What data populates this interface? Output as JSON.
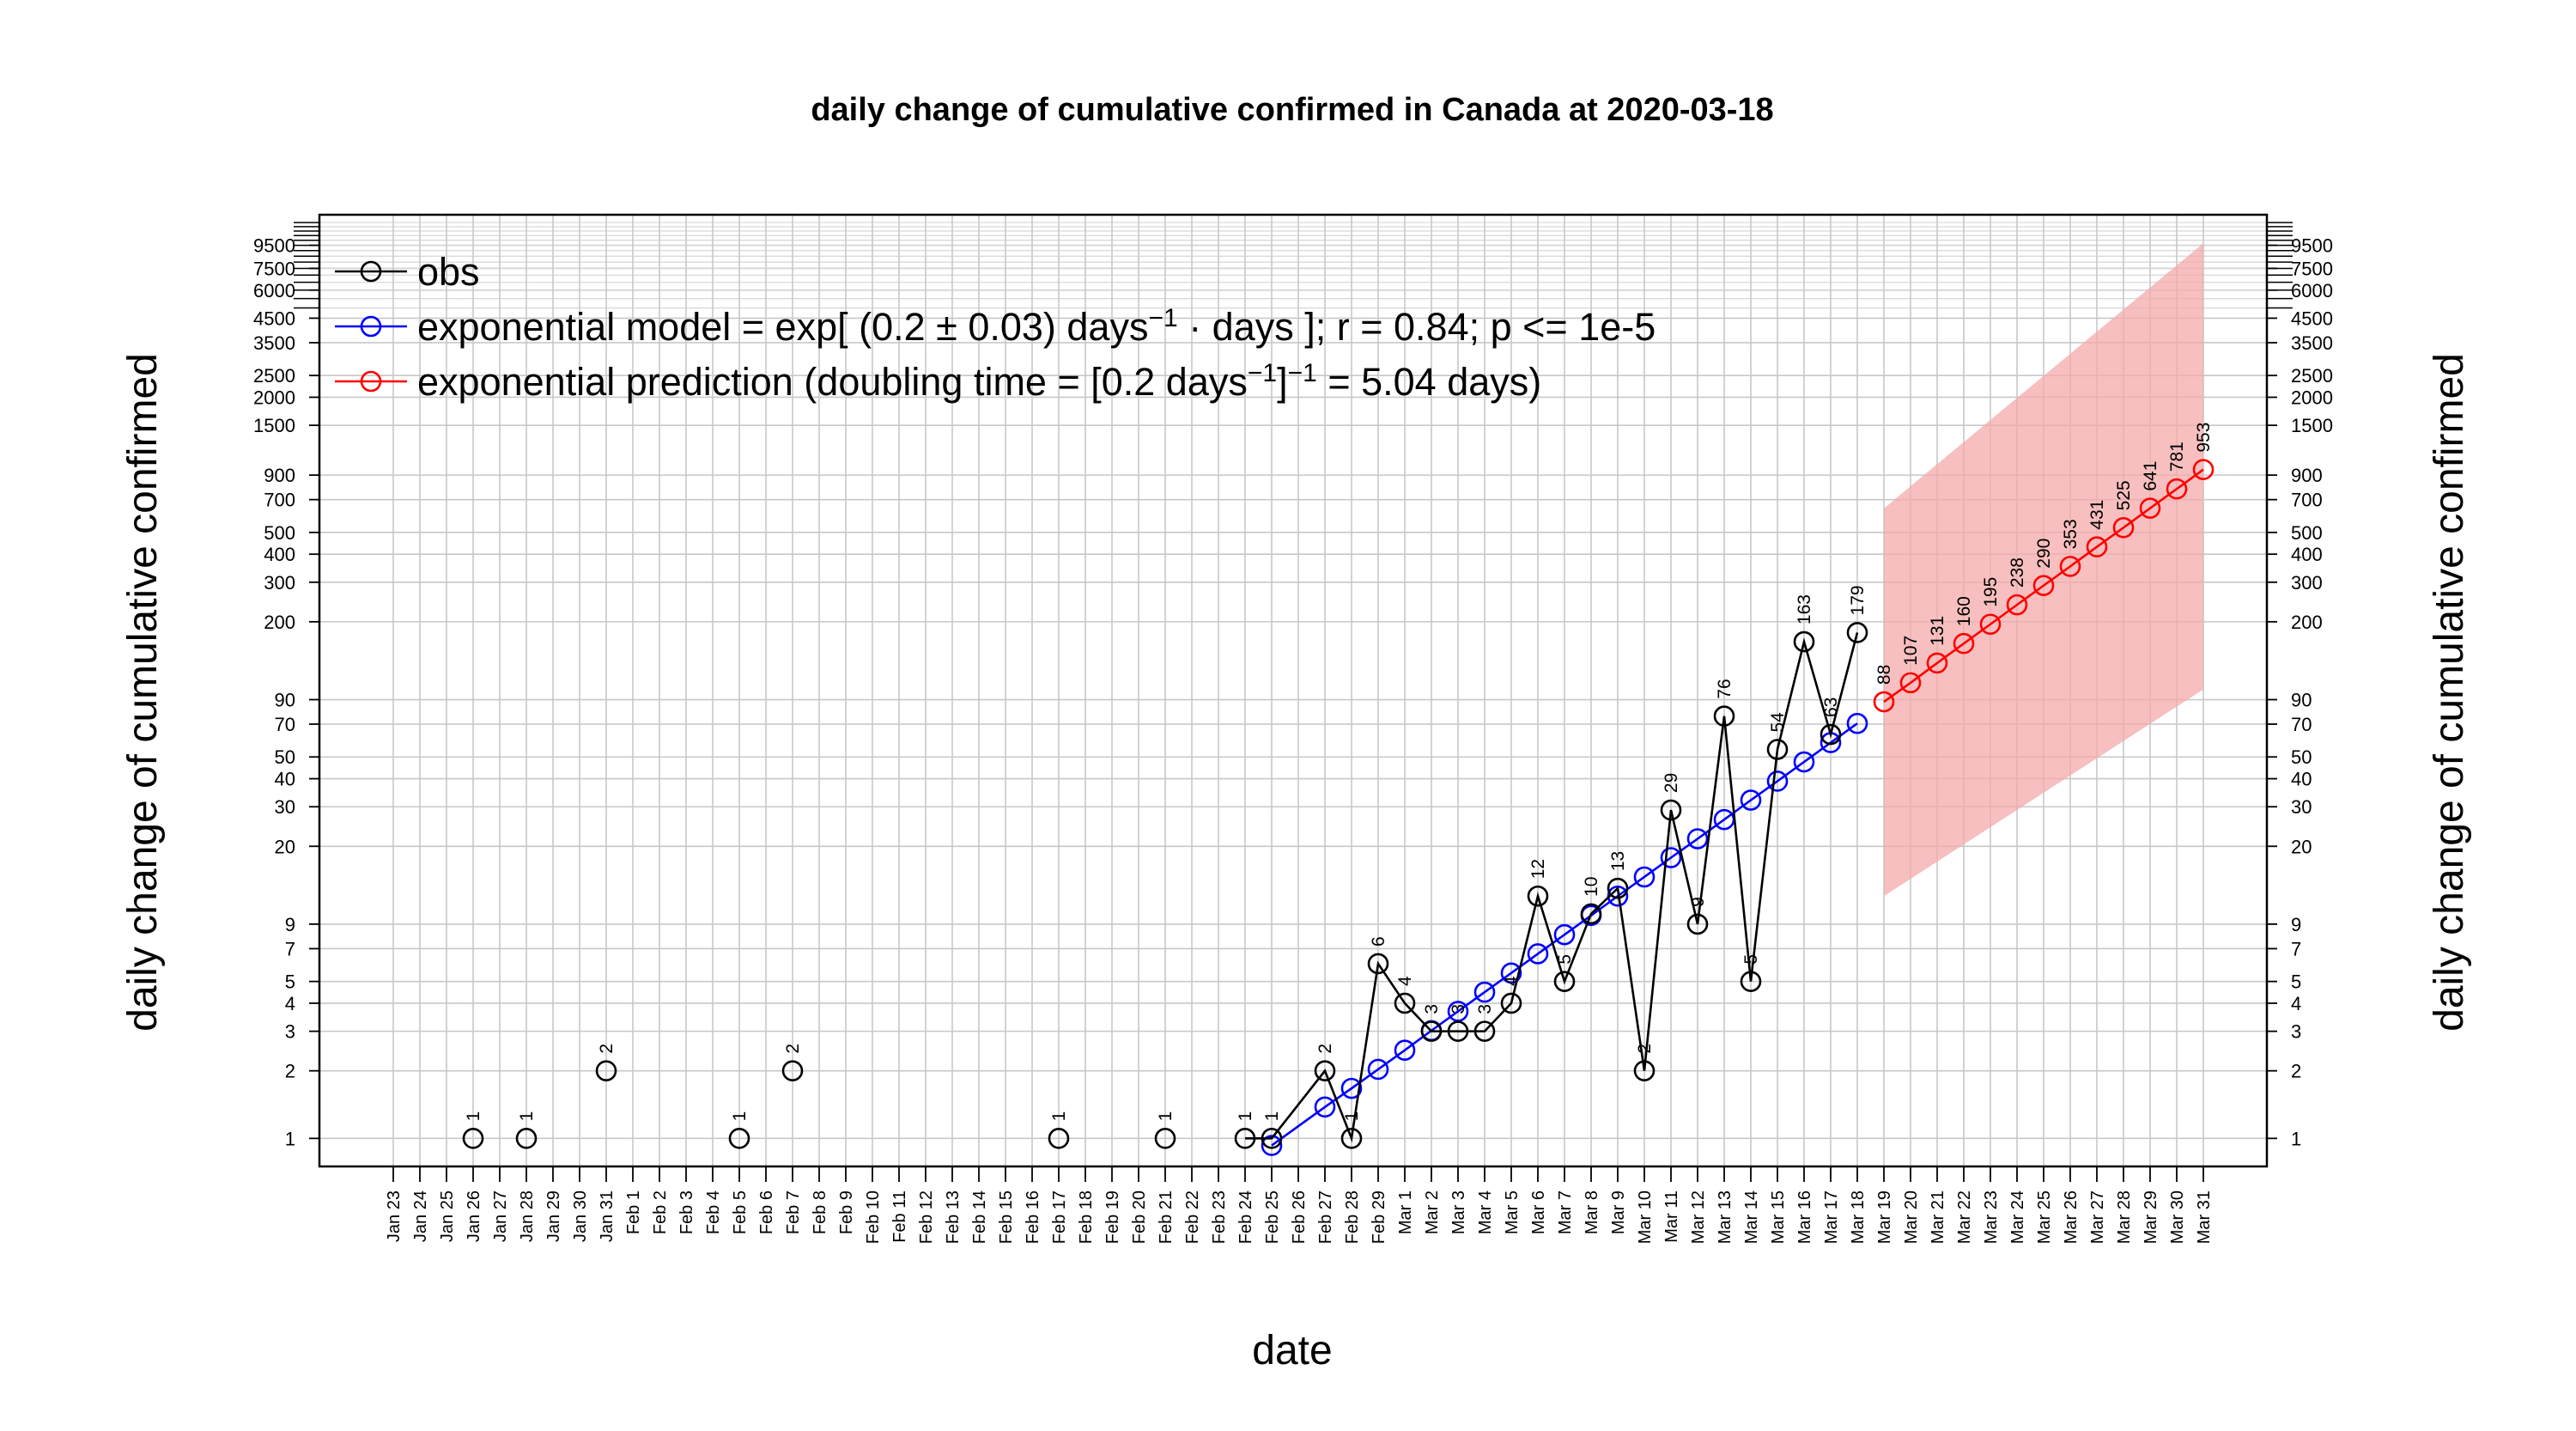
{
  "chart_data": {
    "type": "line",
    "title": "daily change of cumulative confirmed in Canada at 2020-03-18",
    "xlabel": "date",
    "ylabel": "daily change of cumulative confirmed",
    "y_scale": "log",
    "grid": true,
    "x_dates": [
      "Jan 23",
      "Jan 24",
      "Jan 25",
      "Jan 26",
      "Jan 27",
      "Jan 28",
      "Jan 29",
      "Jan 30",
      "Jan 31",
      "Feb 1",
      "Feb 2",
      "Feb 3",
      "Feb 4",
      "Feb 5",
      "Feb 6",
      "Feb 7",
      "Feb 8",
      "Feb 9",
      "Feb 10",
      "Feb 11",
      "Feb 12",
      "Feb 13",
      "Feb 14",
      "Feb 15",
      "Feb 16",
      "Feb 17",
      "Feb 18",
      "Feb 19",
      "Feb 20",
      "Feb 21",
      "Feb 22",
      "Feb 23",
      "Feb 24",
      "Feb 25",
      "Feb 26",
      "Feb 27",
      "Feb 28",
      "Feb 29",
      "Mar 1",
      "Mar 2",
      "Mar 3",
      "Mar 4",
      "Mar 5",
      "Mar 6",
      "Mar 7",
      "Mar 8",
      "Mar 9",
      "Mar 10",
      "Mar 11",
      "Mar 12",
      "Mar 13",
      "Mar 14",
      "Mar 15",
      "Mar 16",
      "Mar 17",
      "Mar 18",
      "Mar 19",
      "Mar 20",
      "Mar 21",
      "Mar 22",
      "Mar 23",
      "Mar 24",
      "Mar 25",
      "Mar 26",
      "Mar 27",
      "Mar 28",
      "Mar 29",
      "Mar 30",
      "Mar 31"
    ],
    "y_ticks": [
      1,
      2,
      3,
      4,
      5,
      7,
      9,
      20,
      30,
      40,
      50,
      70,
      90,
      200,
      300,
      400,
      500,
      700,
      900,
      1500,
      2000,
      2500,
      3500,
      4500,
      6000,
      7500,
      9500
    ],
    "ylim": [
      0.75,
      13000
    ],
    "series": [
      {
        "name": "obs",
        "color": "#000000",
        "isolated": [
          {
            "x": "Jan 26",
            "y": 1,
            "label": "1"
          },
          {
            "x": "Jan 28",
            "y": 1,
            "label": "1"
          },
          {
            "x": "Jan 31",
            "y": 2,
            "label": "2"
          },
          {
            "x": "Feb 5",
            "y": 1,
            "label": "1"
          },
          {
            "x": "Feb 7",
            "y": 2,
            "label": "2"
          },
          {
            "x": "Feb 17",
            "y": 1,
            "label": "1"
          },
          {
            "x": "Feb 21",
            "y": 1,
            "label": "1"
          }
        ],
        "points": [
          {
            "x": "Feb 24",
            "y": 1,
            "label": "1"
          },
          {
            "x": "Feb 25",
            "y": 1,
            "label": "1"
          },
          {
            "x": "Feb 27",
            "y": 2,
            "label": "2"
          },
          {
            "x": "Feb 28",
            "y": 1,
            "label": "1"
          },
          {
            "x": "Feb 29",
            "y": 6,
            "label": "6"
          },
          {
            "x": "Mar 1",
            "y": 4,
            "label": "4"
          },
          {
            "x": "Mar 2",
            "y": 3,
            "label": "3"
          },
          {
            "x": "Mar 3",
            "y": 3,
            "label": "3"
          },
          {
            "x": "Mar 4",
            "y": 3,
            "label": "3"
          },
          {
            "x": "Mar 5",
            "y": 4,
            "label": "4"
          },
          {
            "x": "Mar 6",
            "y": 12,
            "label": "12"
          },
          {
            "x": "Mar 7",
            "y": 5,
            "label": "5"
          },
          {
            "x": "Mar 8",
            "y": 10,
            "label": "10"
          },
          {
            "x": "Mar 9",
            "y": 13,
            "label": "13"
          },
          {
            "x": "Mar 10",
            "y": 2,
            "label": "2"
          },
          {
            "x": "Mar 11",
            "y": 29,
            "label": "29"
          },
          {
            "x": "Mar 12",
            "y": 9,
            "label": "9"
          },
          {
            "x": "Mar 13",
            "y": 76,
            "label": "76"
          },
          {
            "x": "Mar 14",
            "y": 5,
            "label": "5"
          },
          {
            "x": "Mar 15",
            "y": 54,
            "label": "54"
          },
          {
            "x": "Mar 16",
            "y": 163,
            "label": "163"
          },
          {
            "x": "Mar 17",
            "y": 63,
            "label": "63"
          },
          {
            "x": "Mar 18",
            "y": 179,
            "label": "179"
          }
        ]
      },
      {
        "name": "exponential model",
        "color": "#0000ff",
        "points": [
          {
            "x": "Feb 25",
            "y": 0.93
          },
          {
            "x": "Feb 27",
            "y": 1.38
          },
          {
            "x": "Feb 28",
            "y": 1.67
          },
          {
            "x": "Feb 29",
            "y": 2.03
          },
          {
            "x": "Mar 1",
            "y": 2.47
          },
          {
            "x": "Mar 2",
            "y": 3.02
          },
          {
            "x": "Mar 3",
            "y": 3.68
          },
          {
            "x": "Mar 4",
            "y": 4.48
          },
          {
            "x": "Mar 5",
            "y": 5.45
          },
          {
            "x": "Mar 6",
            "y": 6.64
          },
          {
            "x": "Mar 7",
            "y": 8.08
          },
          {
            "x": "Mar 8",
            "y": 9.84
          },
          {
            "x": "Mar 9",
            "y": 12.0
          },
          {
            "x": "Mar 10",
            "y": 14.6
          },
          {
            "x": "Mar 11",
            "y": 17.8
          },
          {
            "x": "Mar 12",
            "y": 21.6
          },
          {
            "x": "Mar 13",
            "y": 26.3
          },
          {
            "x": "Mar 14",
            "y": 32.1
          },
          {
            "x": "Mar 15",
            "y": 39.0
          },
          {
            "x": "Mar 16",
            "y": 47.5
          },
          {
            "x": "Mar 17",
            "y": 57.9
          },
          {
            "x": "Mar 18",
            "y": 70.5
          }
        ]
      },
      {
        "name": "exponential prediction",
        "color": "#ff0000",
        "points": [
          {
            "x": "Mar 19",
            "y": 88,
            "label": "88"
          },
          {
            "x": "Mar 20",
            "y": 107,
            "label": "107"
          },
          {
            "x": "Mar 21",
            "y": 131,
            "label": "131"
          },
          {
            "x": "Mar 22",
            "y": 160,
            "label": "160"
          },
          {
            "x": "Mar 23",
            "y": 195,
            "label": "195"
          },
          {
            "x": "Mar 24",
            "y": 238,
            "label": "238"
          },
          {
            "x": "Mar 25",
            "y": 290,
            "label": "290"
          },
          {
            "x": "Mar 26",
            "y": 353,
            "label": "353"
          },
          {
            "x": "Mar 27",
            "y": 431,
            "label": "431"
          },
          {
            "x": "Mar 28",
            "y": 525,
            "label": "525"
          },
          {
            "x": "Mar 29",
            "y": 641,
            "label": "641"
          },
          {
            "x": "Mar 30",
            "y": 781,
            "label": "781"
          },
          {
            "x": "Mar 31",
            "y": 953,
            "label": "953"
          }
        ]
      }
    ],
    "prediction_band": {
      "color": "#f4a9a9",
      "x_start": "Mar 19",
      "x_end": "Mar 31",
      "lower_start": 12,
      "lower_end": 100,
      "upper_start": 640,
      "upper_end": 9700
    },
    "legend": {
      "placement": "top-left",
      "entries": [
        {
          "color": "#000000",
          "text": "obs"
        },
        {
          "color": "#0000ff",
          "text": "exponential model = exp[ (0.2 ± 0.03) days",
          "sup": "−1",
          "text2": " ·  days ]; r = 0.84; p <= 1e-5"
        },
        {
          "color": "#ff0000",
          "text": "exponential prediction (doubling time = [0.2 days",
          "sup": "−1",
          "text2": "]",
          "sup2": "−1",
          "text3": " = 5.04 days)"
        }
      ]
    }
  }
}
